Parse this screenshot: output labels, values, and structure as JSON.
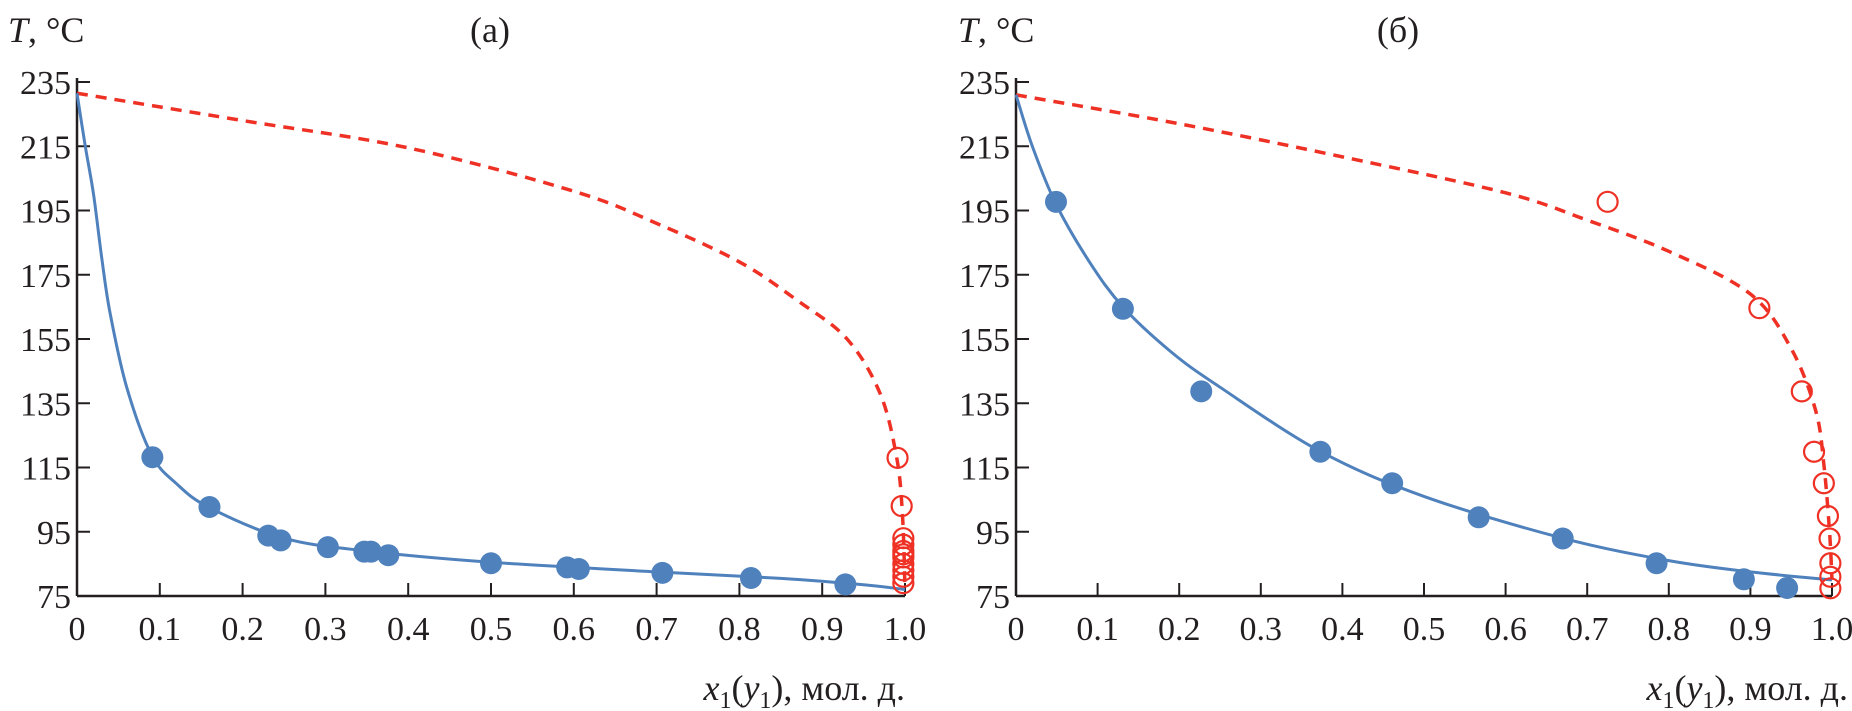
{
  "colors": {
    "liquid": "#4f81bd",
    "vapor": "#ee3124",
    "axis": "#231f20"
  },
  "chart_data": [
    {
      "type": "scatter",
      "title": "(а)",
      "ylabel_main": "T",
      "ylabel_unit": ", °C",
      "xlabel_var": "x",
      "xlabel_var_sub": "1",
      "xlabel_paren_var": "y",
      "xlabel_paren_sub": "1",
      "xlabel_unit": "), мол. д.",
      "xlim": [
        0,
        1.0
      ],
      "ylim": [
        75,
        235
      ],
      "xticks": [
        "0",
        "0.1",
        "0.2",
        "0.3",
        "0.4",
        "0.5",
        "0.6",
        "0.7",
        "0.8",
        "0.9",
        "1.0"
      ],
      "yticks": [
        "235",
        "215",
        "195",
        "175",
        "155",
        "135",
        "115",
        "95",
        "75"
      ],
      "grid": false,
      "liquid_points": [
        [
          0.091,
          118.2
        ],
        [
          0.16,
          102.7
        ],
        [
          0.231,
          93.8
        ],
        [
          0.246,
          92.3
        ],
        [
          0.303,
          90.2
        ],
        [
          0.347,
          88.8
        ],
        [
          0.355,
          88.8
        ],
        [
          0.376,
          87.7
        ],
        [
          0.5,
          85.2
        ],
        [
          0.592,
          83.9
        ],
        [
          0.606,
          83.4
        ],
        [
          0.707,
          82.2
        ],
        [
          0.814,
          80.6
        ],
        [
          0.928,
          78.6
        ]
      ],
      "vapor_points": [
        [
          0.991,
          118
        ],
        [
          0.996,
          103
        ],
        [
          0.998,
          93
        ],
        [
          0.998,
          91
        ],
        [
          0.998,
          89
        ],
        [
          0.998,
          88
        ],
        [
          0.998,
          87
        ],
        [
          0.998,
          85
        ],
        [
          0.998,
          83
        ],
        [
          0.998,
          81
        ],
        [
          0.998,
          79
        ]
      ],
      "liquid_curve": [
        [
          0,
          231.5
        ],
        [
          0.01,
          215
        ],
        [
          0.02,
          200
        ],
        [
          0.03,
          180
        ],
        [
          0.04,
          163
        ],
        [
          0.06,
          140
        ],
        [
          0.09,
          119
        ],
        [
          0.12,
          110
        ],
        [
          0.16,
          102.5
        ],
        [
          0.25,
          93
        ],
        [
          0.35,
          89
        ],
        [
          0.5,
          85.5
        ],
        [
          0.7,
          82.5
        ],
        [
          0.85,
          80.5
        ],
        [
          0.95,
          78.5
        ],
        [
          1.0,
          77
        ]
      ],
      "vapor_curve": [
        [
          0,
          231.5
        ],
        [
          0.2,
          223
        ],
        [
          0.4,
          214.5
        ],
        [
          0.6,
          201
        ],
        [
          0.7,
          191
        ],
        [
          0.8,
          179
        ],
        [
          0.87,
          167
        ],
        [
          0.93,
          155
        ],
        [
          0.97,
          138
        ],
        [
          0.99,
          118
        ],
        [
          0.997,
          100
        ],
        [
          1.0,
          77
        ]
      ]
    },
    {
      "type": "scatter",
      "title": "(б)",
      "ylabel_main": "T",
      "ylabel_unit": ", °C",
      "xlabel_var": "x",
      "xlabel_var_sub": "1",
      "xlabel_paren_var": "y",
      "xlabel_paren_sub": "1",
      "xlabel_unit": "), мол. д.",
      "xlim": [
        0,
        1.0
      ],
      "ylim": [
        75,
        235
      ],
      "xticks": [
        "0",
        "0.1",
        "0.2",
        "0.3",
        "0.4",
        "0.5",
        "0.6",
        "0.7",
        "0.8",
        "0.9",
        "1.0"
      ],
      "yticks": [
        "235",
        "215",
        "195",
        "175",
        "155",
        "135",
        "115",
        "95",
        "75"
      ],
      "grid": false,
      "liquid_points": [
        [
          0.049,
          197.7
        ],
        [
          0.131,
          164.4
        ],
        [
          0.227,
          138.7
        ],
        [
          0.373,
          119.9
        ],
        [
          0.461,
          110.1
        ],
        [
          0.567,
          99.5
        ],
        [
          0.67,
          92.9
        ],
        [
          0.785,
          85.2
        ],
        [
          0.892,
          80.2
        ],
        [
          0.945,
          77.5
        ]
      ],
      "vapor_points": [
        [
          0.725,
          197.7
        ],
        [
          0.911,
          164.6
        ],
        [
          0.963,
          138.7
        ],
        [
          0.978,
          119.9
        ],
        [
          0.99,
          110.1
        ],
        [
          0.995,
          99.9
        ],
        [
          0.997,
          92.9
        ],
        [
          0.998,
          85.2
        ],
        [
          0.998,
          81
        ],
        [
          0.998,
          77.4
        ]
      ],
      "liquid_curve": [
        [
          0,
          231
        ],
        [
          0.02,
          215
        ],
        [
          0.049,
          197
        ],
        [
          0.09,
          179
        ],
        [
          0.131,
          165
        ],
        [
          0.19,
          151
        ],
        [
          0.25,
          140
        ],
        [
          0.373,
          120
        ],
        [
          0.5,
          106
        ],
        [
          0.67,
          93
        ],
        [
          0.8,
          86
        ],
        [
          0.9,
          82.5
        ],
        [
          1.0,
          80
        ]
      ],
      "vapor_curve": [
        [
          0,
          231
        ],
        [
          0.2,
          222
        ],
        [
          0.4,
          211.7
        ],
        [
          0.6,
          200.5
        ],
        [
          0.7,
          192
        ],
        [
          0.8,
          182.3
        ],
        [
          0.9,
          169
        ],
        [
          0.95,
          152
        ],
        [
          0.98,
          132.7
        ],
        [
          0.99,
          116
        ],
        [
          0.997,
          95
        ],
        [
          1.0,
          80
        ]
      ]
    }
  ]
}
